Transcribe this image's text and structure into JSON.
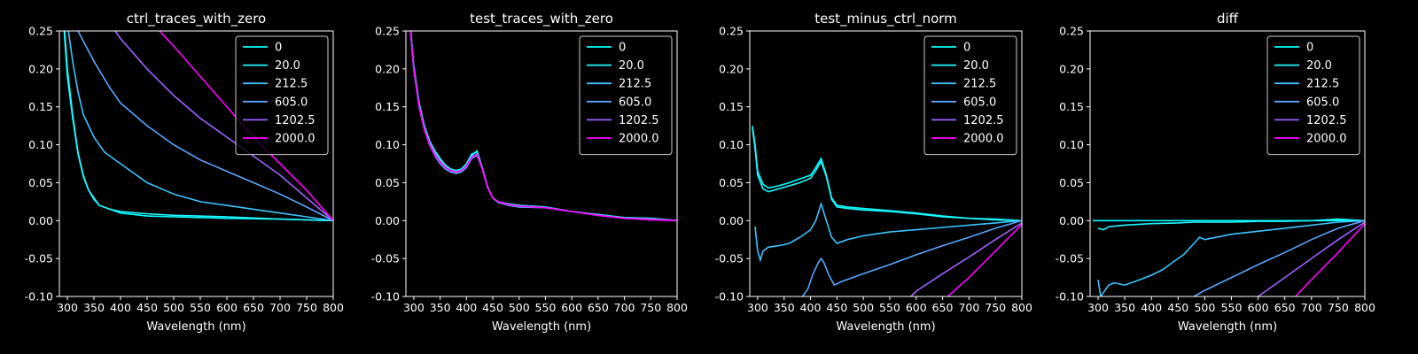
{
  "chart_data": [
    {
      "type": "line",
      "title": "ctrl_traces_with_zero",
      "xlabel": "Wavelength (nm)",
      "ylabel": "",
      "xlim": [
        285,
        800
      ],
      "ylim": [
        -0.1,
        0.25
      ],
      "xticks": [
        "300",
        "350",
        "400",
        "450",
        "500",
        "550",
        "600",
        "650",
        "700",
        "750",
        "800"
      ],
      "yticks": [
        "-0.10",
        "-0.05",
        "0.00",
        "0.05",
        "0.10",
        "0.15",
        "0.20",
        "0.25"
      ],
      "legend_position": "top-right",
      "series": [
        {
          "name": "0",
          "color": "#00ffff",
          "x": [
            290,
            300,
            310,
            320,
            330,
            340,
            350,
            360,
            380,
            400,
            450,
            500,
            600,
            700,
            800
          ],
          "y": [
            0.3,
            0.2,
            0.14,
            0.09,
            0.06,
            0.04,
            0.03,
            0.02,
            0.015,
            0.01,
            0.006,
            0.005,
            0.003,
            0.002,
            0.0
          ]
        },
        {
          "name": "20.0",
          "color": "#1ff7ff",
          "x": [
            290,
            300,
            310,
            320,
            330,
            340,
            350,
            360,
            380,
            400,
            450,
            500,
            600,
            700,
            800
          ],
          "y": [
            0.29,
            0.19,
            0.135,
            0.088,
            0.058,
            0.04,
            0.028,
            0.02,
            0.015,
            0.012,
            0.009,
            0.007,
            0.005,
            0.002,
            0.0
          ]
        },
        {
          "name": "212.5",
          "color": "#3cc3ff",
          "x": [
            295,
            300,
            310,
            320,
            330,
            350,
            370,
            400,
            450,
            500,
            550,
            600,
            650,
            700,
            750,
            800
          ],
          "y": [
            0.3,
            0.26,
            0.21,
            0.17,
            0.14,
            0.11,
            0.09,
            0.075,
            0.05,
            0.035,
            0.025,
            0.02,
            0.015,
            0.01,
            0.005,
            0.0
          ]
        },
        {
          "name": "605.0",
          "color": "#5aa5ff",
          "x": [
            300,
            320,
            350,
            380,
            400,
            450,
            500,
            550,
            600,
            650,
            700,
            750,
            800
          ],
          "y": [
            0.3,
            0.25,
            0.21,
            0.175,
            0.155,
            0.125,
            0.1,
            0.08,
            0.065,
            0.05,
            0.035,
            0.018,
            0.0
          ]
        },
        {
          "name": "1202.5",
          "color": "#9e61ff",
          "x": [
            360,
            380,
            400,
            450,
            500,
            550,
            600,
            650,
            700,
            750,
            800
          ],
          "y": [
            0.28,
            0.26,
            0.24,
            0.2,
            0.165,
            0.135,
            0.11,
            0.085,
            0.06,
            0.03,
            0.0
          ]
        },
        {
          "name": "2000.0",
          "color": "#ff00ff",
          "x": [
            440,
            460,
            480,
            500,
            550,
            600,
            650,
            700,
            750,
            800
          ],
          "y": [
            0.28,
            0.26,
            0.245,
            0.23,
            0.19,
            0.15,
            0.11,
            0.075,
            0.04,
            0.0
          ]
        }
      ]
    },
    {
      "type": "line",
      "title": "test_traces_with_zero",
      "xlabel": "Wavelength (nm)",
      "ylabel": "",
      "xlim": [
        285,
        800
      ],
      "ylim": [
        -0.1,
        0.25
      ],
      "xticks": [
        "300",
        "350",
        "400",
        "450",
        "500",
        "550",
        "600",
        "650",
        "700",
        "750",
        "800"
      ],
      "yticks": [
        "-0.10",
        "-0.05",
        "0.00",
        "0.05",
        "0.10",
        "0.15",
        "0.20",
        "0.25"
      ],
      "legend_position": "top-right",
      "series": [
        {
          "name": "0",
          "color": "#00ffff",
          "x": [
            290,
            300,
            310,
            320,
            330,
            340,
            350,
            360,
            370,
            380,
            390,
            400,
            410,
            420,
            430,
            440,
            450,
            460,
            480,
            500,
            550,
            600,
            650,
            700,
            750,
            800
          ],
          "y": [
            0.28,
            0.2,
            0.155,
            0.125,
            0.105,
            0.092,
            0.082,
            0.073,
            0.068,
            0.066,
            0.068,
            0.075,
            0.088,
            0.09,
            0.07,
            0.045,
            0.03,
            0.025,
            0.022,
            0.02,
            0.018,
            0.012,
            0.008,
            0.004,
            0.003,
            0.0
          ]
        },
        {
          "name": "20.0",
          "color": "#1ff7ff",
          "x": [
            290,
            300,
            310,
            320,
            330,
            340,
            350,
            360,
            370,
            380,
            390,
            400,
            410,
            420,
            430,
            440,
            450,
            460,
            480,
            500,
            550,
            600,
            650,
            700,
            750,
            800
          ],
          "y": [
            0.285,
            0.205,
            0.155,
            0.125,
            0.105,
            0.09,
            0.08,
            0.072,
            0.067,
            0.065,
            0.067,
            0.074,
            0.086,
            0.092,
            0.07,
            0.045,
            0.03,
            0.025,
            0.022,
            0.02,
            0.018,
            0.012,
            0.008,
            0.004,
            0.003,
            0.0
          ]
        },
        {
          "name": "212.5",
          "color": "#3cc3ff",
          "x": [
            290,
            300,
            310,
            320,
            330,
            340,
            350,
            360,
            370,
            380,
            390,
            400,
            410,
            420,
            430,
            440,
            450,
            460,
            480,
            500,
            550,
            600,
            650,
            700,
            750,
            800
          ],
          "y": [
            0.28,
            0.2,
            0.15,
            0.12,
            0.1,
            0.085,
            0.075,
            0.068,
            0.064,
            0.062,
            0.064,
            0.07,
            0.082,
            0.086,
            0.068,
            0.044,
            0.03,
            0.024,
            0.02,
            0.018,
            0.017,
            0.012,
            0.007,
            0.003,
            0.002,
            0.0
          ]
        },
        {
          "name": "605.0",
          "color": "#5aa5ff",
          "x": [
            290,
            300,
            310,
            320,
            330,
            340,
            350,
            360,
            370,
            380,
            390,
            400,
            410,
            420,
            430,
            440,
            450,
            460,
            480,
            500,
            550,
            600,
            650,
            700,
            750,
            800
          ],
          "y": [
            0.28,
            0.2,
            0.15,
            0.12,
            0.1,
            0.086,
            0.076,
            0.069,
            0.065,
            0.063,
            0.065,
            0.071,
            0.083,
            0.087,
            0.068,
            0.044,
            0.03,
            0.024,
            0.021,
            0.019,
            0.017,
            0.012,
            0.007,
            0.003,
            0.002,
            0.0
          ]
        },
        {
          "name": "1202.5",
          "color": "#9e61ff",
          "x": [
            290,
            300,
            310,
            320,
            330,
            340,
            350,
            360,
            370,
            380,
            390,
            400,
            410,
            420,
            430,
            440,
            450,
            460,
            480,
            500,
            550,
            600,
            650,
            700,
            750,
            800
          ],
          "y": [
            0.28,
            0.2,
            0.152,
            0.122,
            0.102,
            0.088,
            0.078,
            0.07,
            0.066,
            0.064,
            0.066,
            0.072,
            0.084,
            0.088,
            0.069,
            0.045,
            0.03,
            0.025,
            0.021,
            0.019,
            0.017,
            0.012,
            0.007,
            0.003,
            0.002,
            0.0
          ]
        },
        {
          "name": "2000.0",
          "color": "#ff00ff",
          "x": [
            290,
            300,
            310,
            320,
            330,
            340,
            350,
            360,
            370,
            380,
            390,
            400,
            410,
            420,
            430,
            440,
            450,
            460,
            480,
            500,
            550,
            600,
            650,
            700,
            750,
            800
          ],
          "y": [
            0.28,
            0.2,
            0.15,
            0.12,
            0.1,
            0.086,
            0.077,
            0.07,
            0.066,
            0.064,
            0.066,
            0.072,
            0.083,
            0.087,
            0.068,
            0.044,
            0.03,
            0.025,
            0.021,
            0.019,
            0.017,
            0.012,
            0.007,
            0.003,
            0.001,
            0.0
          ]
        }
      ]
    },
    {
      "type": "line",
      "title": "test_minus_ctrl_norm",
      "xlabel": "Wavelength (nm)",
      "ylabel": "",
      "xlim": [
        285,
        800
      ],
      "ylim": [
        -0.1,
        0.25
      ],
      "xticks": [
        "300",
        "350",
        "400",
        "450",
        "500",
        "550",
        "600",
        "650",
        "700",
        "750",
        "800"
      ],
      "yticks": [
        "-0.10",
        "-0.05",
        "0.00",
        "0.05",
        "0.10",
        "0.15",
        "0.20",
        "0.25"
      ],
      "legend_position": "top-right",
      "series": [
        {
          "name": "0",
          "color": "#00ffff",
          "x": [
            290,
            295,
            300,
            310,
            320,
            340,
            360,
            380,
            400,
            410,
            420,
            430,
            440,
            450,
            470,
            500,
            550,
            600,
            650,
            700,
            750,
            800
          ],
          "y": [
            0.125,
            0.1,
            0.065,
            0.048,
            0.043,
            0.046,
            0.05,
            0.055,
            0.06,
            0.07,
            0.082,
            0.06,
            0.03,
            0.02,
            0.018,
            0.016,
            0.013,
            0.01,
            0.006,
            0.003,
            0.002,
            0.0
          ]
        },
        {
          "name": "20.0",
          "color": "#1ff7ff",
          "x": [
            290,
            295,
            300,
            310,
            320,
            340,
            360,
            380,
            400,
            410,
            420,
            430,
            440,
            450,
            470,
            500,
            550,
            600,
            650,
            700,
            750,
            800
          ],
          "y": [
            0.122,
            0.095,
            0.06,
            0.042,
            0.038,
            0.042,
            0.046,
            0.05,
            0.056,
            0.066,
            0.078,
            0.058,
            0.028,
            0.018,
            0.016,
            0.014,
            0.012,
            0.009,
            0.005,
            0.003,
            0.001,
            0.0
          ]
        },
        {
          "name": "212.5",
          "color": "#3cc3ff",
          "x": [
            295,
            300,
            305,
            310,
            320,
            340,
            360,
            380,
            400,
            410,
            420,
            430,
            440,
            450,
            470,
            500,
            550,
            600,
            650,
            700,
            750,
            800
          ],
          "y": [
            -0.008,
            -0.04,
            -0.052,
            -0.04,
            -0.035,
            -0.033,
            -0.03,
            -0.022,
            -0.012,
            0.0,
            0.022,
            0.0,
            -0.022,
            -0.03,
            -0.025,
            -0.02,
            -0.015,
            -0.012,
            -0.009,
            -0.006,
            -0.003,
            0.0
          ]
        },
        {
          "name": "605.0",
          "color": "#5aa5ff",
          "x": [
            385,
            395,
            405,
            415,
            420,
            425,
            435,
            445,
            460,
            480,
            500,
            550,
            600,
            650,
            700,
            750,
            800
          ],
          "y": [
            -0.1,
            -0.09,
            -0.07,
            -0.055,
            -0.05,
            -0.055,
            -0.072,
            -0.085,
            -0.08,
            -0.075,
            -0.07,
            -0.058,
            -0.045,
            -0.033,
            -0.022,
            -0.01,
            0.0
          ]
        },
        {
          "name": "1202.5",
          "color": "#9e61ff",
          "x": [
            590,
            600,
            650,
            700,
            750,
            800
          ],
          "y": [
            -0.1,
            -0.093,
            -0.07,
            -0.048,
            -0.025,
            -0.003
          ]
        },
        {
          "name": "2000.0",
          "color": "#ff00ff",
          "x": [
            660,
            700,
            750,
            800
          ],
          "y": [
            -0.1,
            -0.075,
            -0.04,
            -0.005
          ]
        }
      ]
    },
    {
      "type": "line",
      "title": "diff",
      "xlabel": "Wavelength (nm)",
      "ylabel": "",
      "xlim": [
        285,
        800
      ],
      "ylim": [
        -0.1,
        0.25
      ],
      "xticks": [
        "300",
        "350",
        "400",
        "450",
        "500",
        "550",
        "600",
        "650",
        "700",
        "750",
        "800"
      ],
      "yticks": [
        "-0.10",
        "-0.05",
        "0.00",
        "0.05",
        "0.10",
        "0.15",
        "0.20",
        "0.25"
      ],
      "legend_position": "top-right",
      "series": [
        {
          "name": "0",
          "color": "#00ffff",
          "x": [
            290,
            400,
            500,
            600,
            700,
            800
          ],
          "y": [
            0.0,
            0.0,
            0.0,
            0.0,
            0.0,
            0.0
          ]
        },
        {
          "name": "20.0",
          "color": "#1ff7ff",
          "x": [
            300,
            310,
            320,
            350,
            400,
            450,
            480,
            500,
            550,
            600,
            650,
            700,
            750,
            800
          ],
          "y": [
            -0.01,
            -0.012,
            -0.008,
            -0.006,
            -0.004,
            -0.003,
            -0.002,
            -0.002,
            -0.002,
            -0.001,
            -0.001,
            0.0,
            0.002,
            0.0
          ]
        },
        {
          "name": "212.5",
          "color": "#3cc3ff",
          "x": [
            300,
            305,
            310,
            320,
            330,
            350,
            370,
            400,
            420,
            440,
            460,
            480,
            490,
            500,
            550,
            600,
            650,
            700,
            750,
            800
          ],
          "y": [
            -0.078,
            -0.1,
            -0.095,
            -0.085,
            -0.082,
            -0.085,
            -0.08,
            -0.072,
            -0.065,
            -0.055,
            -0.045,
            -0.03,
            -0.022,
            -0.025,
            -0.018,
            -0.014,
            -0.01,
            -0.006,
            -0.002,
            0.0
          ]
        },
        {
          "name": "605.0",
          "color": "#5aa5ff",
          "x": [
            480,
            500,
            550,
            600,
            650,
            700,
            750,
            800
          ],
          "y": [
            -0.1,
            -0.092,
            -0.075,
            -0.058,
            -0.042,
            -0.025,
            -0.01,
            0.0
          ]
        },
        {
          "name": "1202.5",
          "color": "#9e61ff",
          "x": [
            600,
            650,
            700,
            750,
            800
          ],
          "y": [
            -0.1,
            -0.075,
            -0.05,
            -0.025,
            -0.002
          ]
        },
        {
          "name": "2000.0",
          "color": "#ff00ff",
          "x": [
            670,
            700,
            750,
            800
          ],
          "y": [
            -0.1,
            -0.078,
            -0.042,
            -0.004
          ]
        }
      ]
    }
  ]
}
